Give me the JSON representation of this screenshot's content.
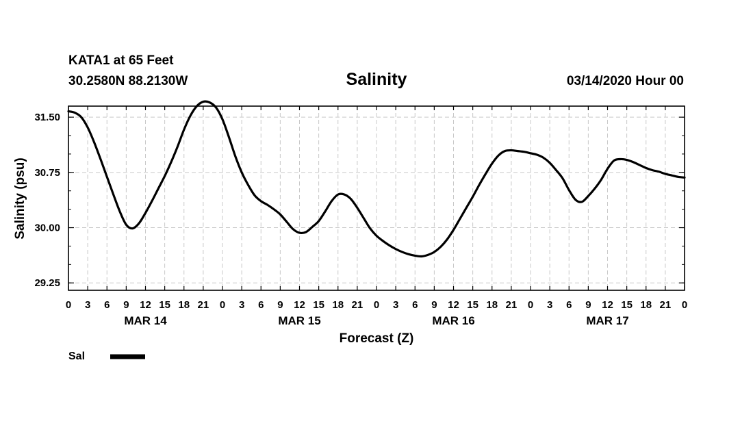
{
  "header": {
    "station": "KATA1 at 65 Feet",
    "coords": "30.2580N 88.2130W",
    "timestamp": "03/14/2020 Hour 00"
  },
  "legend": {
    "label": "Sal"
  },
  "colors": {
    "line": "#000000",
    "grid": "#c8c8c8",
    "background": "#ffffff"
  },
  "chart_data": {
    "type": "line",
    "title": "Salinity",
    "xlabel": "Forecast (Z)",
    "ylabel": "Salinity (psu)",
    "xlim": [
      0,
      96
    ],
    "ylim": [
      29.15,
      31.65
    ],
    "yticks": [
      29.25,
      30.0,
      30.75,
      31.5
    ],
    "ytick_labels": [
      "29.25",
      "30.00",
      "30.75",
      "31.50"
    ],
    "x_tick_hours": [
      0,
      3,
      6,
      9,
      12,
      15,
      18,
      21,
      24,
      27,
      30,
      33,
      36,
      39,
      42,
      45,
      48,
      51,
      54,
      57,
      60,
      63,
      66,
      69,
      72,
      75,
      78,
      81,
      84,
      87,
      90,
      93,
      96
    ],
    "x_tick_labels": [
      "0",
      "3",
      "6",
      "9",
      "12",
      "15",
      "18",
      "21",
      "0",
      "3",
      "6",
      "9",
      "12",
      "15",
      "18",
      "21",
      "0",
      "3",
      "6",
      "9",
      "12",
      "15",
      "18",
      "21",
      "0",
      "3",
      "6",
      "9",
      "12",
      "15",
      "18",
      "21",
      "0"
    ],
    "day_labels": [
      {
        "hour": 12,
        "label": "MAR 14"
      },
      {
        "hour": 36,
        "label": "MAR 15"
      },
      {
        "hour": 60,
        "label": "MAR 16"
      },
      {
        "hour": 84,
        "label": "MAR 17"
      }
    ],
    "series": [
      {
        "name": "Sal",
        "x": [
          0,
          1,
          2,
          3,
          4,
          5,
          6,
          7,
          8,
          9,
          10,
          11,
          12,
          13,
          14,
          15,
          16,
          17,
          18,
          19,
          20,
          21,
          22,
          23,
          24,
          25,
          26,
          27,
          28,
          29,
          30,
          31,
          32,
          33,
          34,
          35,
          36,
          37,
          38,
          39,
          40,
          41,
          42,
          43,
          44,
          45,
          46,
          47,
          48,
          49,
          50,
          51,
          52,
          53,
          54,
          55,
          56,
          57,
          58,
          59,
          60,
          61,
          62,
          63,
          64,
          65,
          66,
          67,
          68,
          69,
          70,
          71,
          72,
          73,
          74,
          75,
          76,
          77,
          78,
          79,
          80,
          81,
          82,
          83,
          84,
          85,
          86,
          87,
          88,
          89,
          90,
          91,
          92,
          93,
          94,
          95,
          96
        ],
        "y": [
          31.58,
          31.56,
          31.5,
          31.36,
          31.16,
          30.93,
          30.69,
          30.45,
          30.22,
          30.04,
          29.99,
          30.06,
          30.2,
          30.36,
          30.53,
          30.7,
          30.89,
          31.1,
          31.33,
          31.52,
          31.65,
          31.71,
          31.7,
          31.63,
          31.47,
          31.23,
          30.97,
          30.75,
          30.58,
          30.44,
          30.36,
          30.31,
          30.25,
          30.18,
          30.08,
          29.98,
          29.93,
          29.94,
          30.01,
          30.09,
          30.22,
          30.36,
          30.45,
          30.45,
          30.39,
          30.27,
          30.13,
          29.99,
          29.89,
          29.82,
          29.76,
          29.71,
          29.67,
          29.64,
          29.62,
          29.61,
          29.63,
          29.67,
          29.74,
          29.84,
          29.97,
          30.12,
          30.27,
          30.42,
          30.58,
          30.73,
          30.87,
          30.98,
          31.04,
          31.05,
          31.04,
          31.03,
          31.01,
          30.99,
          30.95,
          30.88,
          30.78,
          30.67,
          30.51,
          30.38,
          30.35,
          30.43,
          30.53,
          30.65,
          30.8,
          30.91,
          30.93,
          30.92,
          30.89,
          30.85,
          30.81,
          30.78,
          30.76,
          30.73,
          30.71,
          30.69,
          30.68
        ]
      }
    ],
    "grid": true
  }
}
